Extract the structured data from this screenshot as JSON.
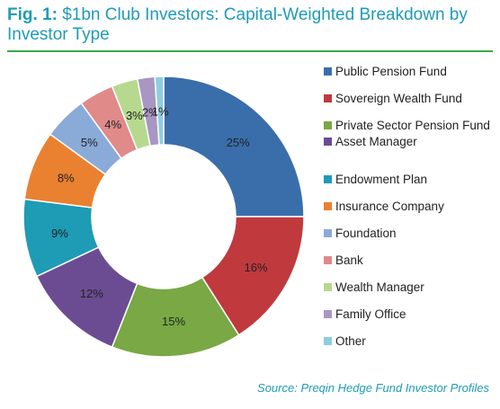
{
  "title": {
    "fig": "Fig. 1:",
    "text": "$1bn Club Investors: Capital-Weighted Breakdown by Investor Type"
  },
  "source": "Source: Preqin Hedge Fund Investor Profiles",
  "chart_data": {
    "type": "pie",
    "donut": true,
    "legend_position": "right",
    "categories": [
      "Public Pension Fund",
      "Sovereign Wealth Fund",
      "Private Sector Pension Fund",
      "Asset Manager",
      "Endowment Plan",
      "Insurance Company",
      "Foundation",
      "Bank",
      "Wealth Manager",
      "Family Office",
      "Other"
    ],
    "values": [
      25,
      16,
      15,
      12,
      9,
      8,
      5,
      4,
      3,
      2,
      1
    ],
    "labels": [
      "25%",
      "16%",
      "15%",
      "12%",
      "9%",
      "8%",
      "5%",
      "4%",
      "3%",
      "2%",
      "1%"
    ],
    "colors": [
      "#3a6eab",
      "#c0393d",
      "#79a845",
      "#6b4c93",
      "#1e9bb5",
      "#ea8130",
      "#8aaad8",
      "#e08a8a",
      "#b6d98f",
      "#a996c3",
      "#8fcde0"
    ]
  }
}
